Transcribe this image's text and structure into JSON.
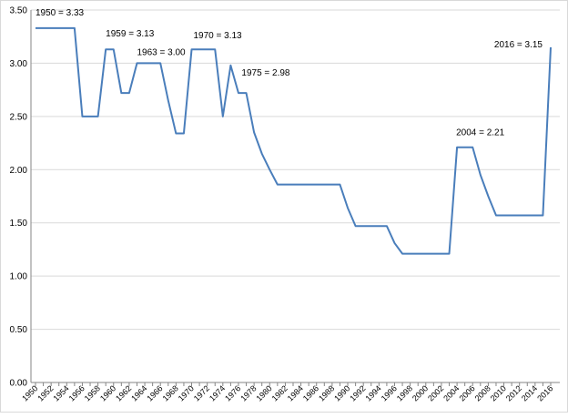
{
  "chart_data": {
    "type": "line",
    "title": "",
    "xlabel": "",
    "ylabel": "",
    "ylim": [
      0,
      3.5
    ],
    "xlim": [
      1950,
      2016
    ],
    "grid": "horizontal",
    "legend": "none",
    "y_ticks": [
      "0.00",
      "0.50",
      "1.00",
      "1.50",
      "2.00",
      "2.50",
      "3.00",
      "3.50"
    ],
    "x_ticks": [
      "1950",
      "1952",
      "1954",
      "1956",
      "1958",
      "1960",
      "1962",
      "1964",
      "1966",
      "1968",
      "1970",
      "1972",
      "1974",
      "1976",
      "1978",
      "1980",
      "1982",
      "1984",
      "1986",
      "1988",
      "1990",
      "1992",
      "1994",
      "1996",
      "1998",
      "2000",
      "2002",
      "2004",
      "2006",
      "2008",
      "2010",
      "2012",
      "2014",
      "2016"
    ],
    "series": [
      {
        "color": "#4a7ebb",
        "x": [
          1950,
          1951,
          1952,
          1953,
          1954,
          1955,
          1956,
          1957,
          1958,
          1959,
          1960,
          1961,
          1962,
          1963,
          1964,
          1965,
          1966,
          1967,
          1968,
          1969,
          1970,
          1971,
          1972,
          1973,
          1974,
          1975,
          1976,
          1977,
          1978,
          1979,
          1980,
          1981,
          1982,
          1983,
          1984,
          1985,
          1986,
          1987,
          1988,
          1989,
          1990,
          1991,
          1992,
          1993,
          1994,
          1995,
          1996,
          1997,
          1998,
          1999,
          2000,
          2001,
          2002,
          2003,
          2004,
          2005,
          2006,
          2007,
          2008,
          2009,
          2010,
          2011,
          2012,
          2013,
          2014,
          2015,
          2016
        ],
        "values": [
          3.33,
          3.33,
          3.33,
          3.33,
          3.33,
          3.33,
          2.5,
          2.5,
          2.5,
          3.13,
          3.13,
          2.72,
          2.72,
          3.0,
          3.0,
          3.0,
          3.0,
          2.65,
          2.34,
          2.34,
          3.13,
          3.13,
          3.13,
          3.13,
          2.5,
          2.98,
          2.72,
          2.72,
          2.35,
          2.15,
          2.0,
          1.86,
          1.86,
          1.86,
          1.86,
          1.86,
          1.86,
          1.86,
          1.86,
          1.86,
          1.64,
          1.47,
          1.47,
          1.47,
          1.47,
          1.47,
          1.31,
          1.21,
          1.21,
          1.21,
          1.21,
          1.21,
          1.21,
          1.21,
          2.21,
          2.21,
          2.21,
          1.95,
          1.75,
          1.57,
          1.57,
          1.57,
          1.57,
          1.57,
          1.57,
          1.57,
          3.15
        ]
      }
    ],
    "annotations": [
      {
        "text": "1950 = 3.33",
        "x": 1950,
        "y": 3.33
      },
      {
        "text": "1959 = 3.13",
        "x": 1959,
        "y": 3.13
      },
      {
        "text": "1963 = 3.00",
        "x": 1963,
        "y": 3.0
      },
      {
        "text": "1970 = 3.13",
        "x": 1970,
        "y": 3.13
      },
      {
        "text": "1975 = 2.98",
        "x": 1975,
        "y": 2.98
      },
      {
        "text": "2004 = 2.21",
        "x": 2004,
        "y": 2.21
      },
      {
        "text": "2016 = 3.15",
        "x": 2016,
        "y": 3.15
      }
    ]
  }
}
